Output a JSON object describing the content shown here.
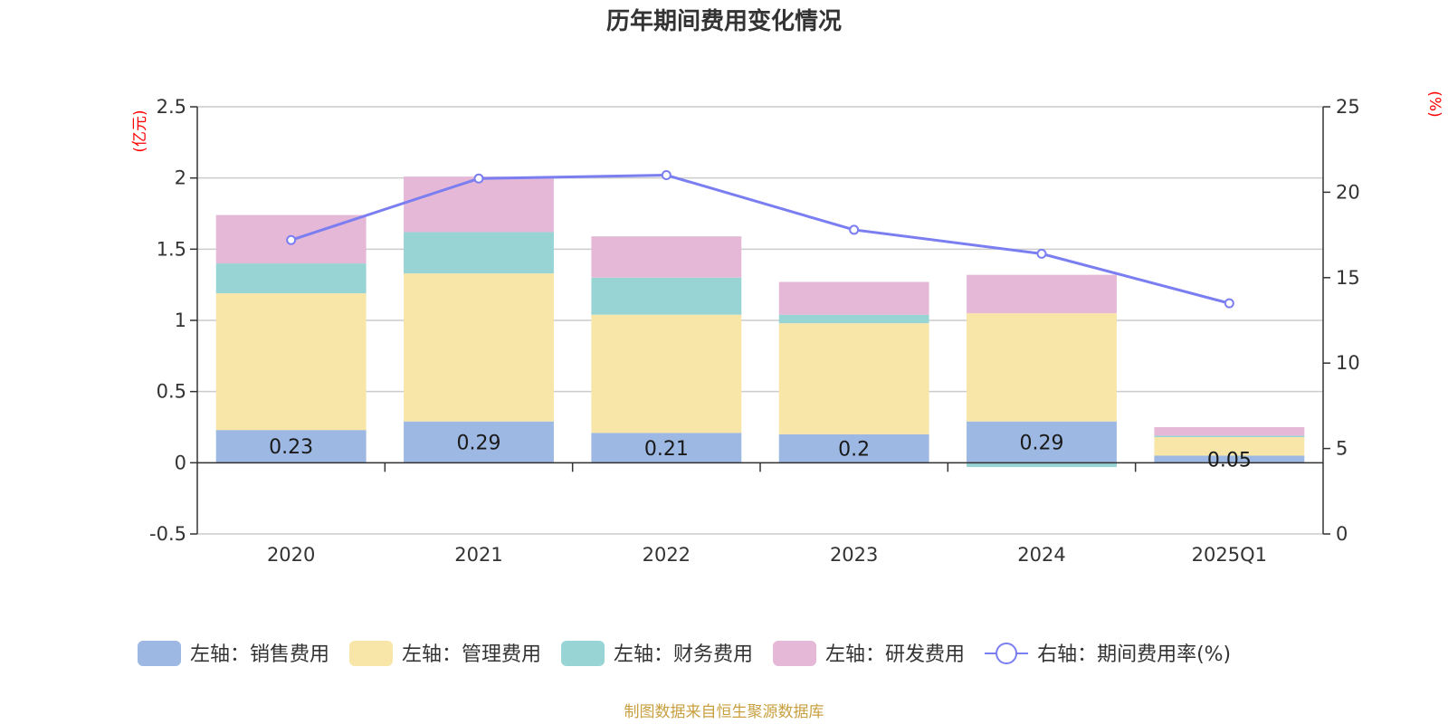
{
  "chart_data": {
    "type": "bar",
    "stacked": true,
    "title": "历年期间费用变化情况",
    "categories": [
      "2020",
      "2021",
      "2022",
      "2023",
      "2024",
      "2025Q1"
    ],
    "left_axis": {
      "unit": "(亿元)",
      "ylim": [
        -0.5,
        2.5
      ],
      "ticks": [
        "-0.5",
        "0",
        "0.5",
        "1",
        "1.5",
        "2",
        "2.5"
      ]
    },
    "right_axis": {
      "unit": "(%)",
      "ylim": [
        0,
        25
      ],
      "ticks": [
        "0",
        "5",
        "10",
        "15",
        "20",
        "25"
      ]
    },
    "series": [
      {
        "name": "左轴：销售费用",
        "type": "bar",
        "axis": "left",
        "color": "#9db8e2",
        "values": [
          0.23,
          0.29,
          0.21,
          0.2,
          0.29,
          0.05
        ],
        "labels": [
          "0.23",
          "0.29",
          "0.21",
          "0.2",
          "0.29",
          "0.05"
        ]
      },
      {
        "name": "左轴：管理费用",
        "type": "bar",
        "axis": "left",
        "color": "#f8e6a8",
        "values": [
          0.96,
          1.04,
          0.83,
          0.78,
          0.76,
          0.13
        ]
      },
      {
        "name": "左轴：财务费用",
        "type": "bar",
        "axis": "left",
        "color": "#98d4d4",
        "values": [
          0.21,
          0.29,
          0.26,
          0.06,
          -0.03,
          0.01
        ]
      },
      {
        "name": "左轴：研发费用",
        "type": "bar",
        "axis": "left",
        "color": "#e6b8d8",
        "values": [
          0.34,
          0.39,
          0.29,
          0.23,
          0.27,
          0.06
        ]
      },
      {
        "name": "右轴：期间费用率(%)",
        "type": "line",
        "axis": "right",
        "color": "#7b7ef0",
        "values": [
          17.2,
          20.8,
          21.0,
          17.8,
          16.4,
          13.5
        ]
      }
    ],
    "grid": true,
    "legend_position": "bottom",
    "source": "制图数据来自恒生聚源数据库"
  }
}
